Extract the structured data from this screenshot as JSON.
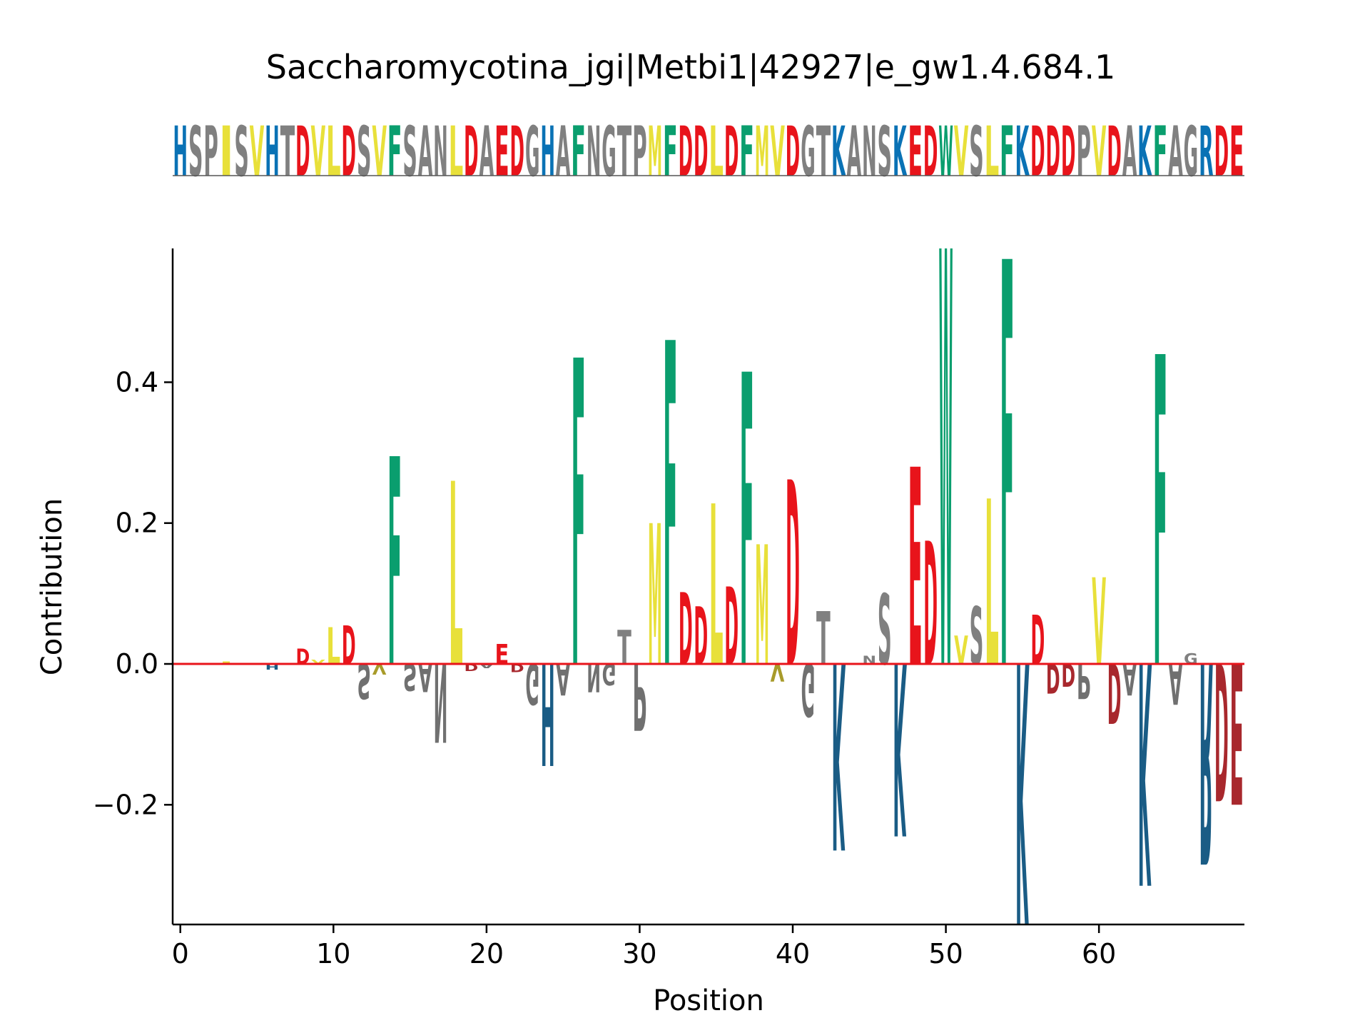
{
  "chart_data": {
    "type": "sequence-logo",
    "title": "Saccharomycotina_jgi|Metbi1|42927|e_gw1.4.684.1",
    "xlabel": "Position",
    "ylabel": "Contribution",
    "xlim": [
      -0.5,
      69.5
    ],
    "ylim": [
      -0.37,
      0.59
    ],
    "xticks": [
      0,
      10,
      20,
      30,
      40,
      50,
      60
    ],
    "yticks": [
      {
        "value": -0.2,
        "label": "−0.2"
      },
      {
        "value": 0.0,
        "label": "0.0"
      },
      {
        "value": 0.2,
        "label": "0.2"
      },
      {
        "value": 0.4,
        "label": "0.4"
      }
    ],
    "grid": false,
    "legend": "none",
    "baseline_color": "#e8141b",
    "sequence": "HSPISVHTDVLDSVFSANLDAEDGHAFNGTPMFDDLDFMVDGTKANSKEDWVSLFKDDDPVDAKFAGRDE",
    "colors": {
      "acidic": "#e8141b",
      "aromatic": "#0a9e6e",
      "hydrophobic": "#e8e03a",
      "basic": "#0a72b5",
      "other": "#808080"
    },
    "contributions": [
      {
        "pos": 3,
        "res": "I",
        "value": 0.003
      },
      {
        "pos": 6,
        "res": "H",
        "value": -0.008
      },
      {
        "pos": 8,
        "res": "D",
        "value": 0.022
      },
      {
        "pos": 9,
        "res": "V",
        "value": 0.006
      },
      {
        "pos": 10,
        "res": "L",
        "value": 0.052
      },
      {
        "pos": 11,
        "res": "D",
        "value": 0.055
      },
      {
        "pos": 12,
        "res": "S",
        "value": -0.05
      },
      {
        "pos": 13,
        "res": "V",
        "value": -0.015
      },
      {
        "pos": 14,
        "res": "F",
        "value": 0.295
      },
      {
        "pos": 15,
        "res": "S",
        "value": -0.038
      },
      {
        "pos": 16,
        "res": "A",
        "value": -0.04
      },
      {
        "pos": 17,
        "res": "N",
        "value": -0.112
      },
      {
        "pos": 18,
        "res": "L",
        "value": 0.26
      },
      {
        "pos": 19,
        "res": "D",
        "value": -0.01
      },
      {
        "pos": 20,
        "res": "A",
        "value": -0.006
      },
      {
        "pos": 21,
        "res": "E",
        "value": 0.028
      },
      {
        "pos": 22,
        "res": "D",
        "value": -0.012
      },
      {
        "pos": 23,
        "res": "G",
        "value": -0.058
      },
      {
        "pos": 24,
        "res": "H",
        "value": -0.145
      },
      {
        "pos": 25,
        "res": "A",
        "value": -0.045
      },
      {
        "pos": 26,
        "res": "F",
        "value": 0.435
      },
      {
        "pos": 27,
        "res": "N",
        "value": -0.04
      },
      {
        "pos": 28,
        "res": "G",
        "value": -0.03
      },
      {
        "pos": 29,
        "res": "T",
        "value": 0.048
      },
      {
        "pos": 30,
        "res": "P",
        "value": -0.095
      },
      {
        "pos": 31,
        "res": "M",
        "value": 0.2
      },
      {
        "pos": 32,
        "res": "F",
        "value": 0.46
      },
      {
        "pos": 33,
        "res": "D",
        "value": 0.102
      },
      {
        "pos": 34,
        "res": "D",
        "value": 0.082
      },
      {
        "pos": 35,
        "res": "L",
        "value": 0.228
      },
      {
        "pos": 36,
        "res": "D",
        "value": 0.11
      },
      {
        "pos": 37,
        "res": "F",
        "value": 0.415
      },
      {
        "pos": 38,
        "res": "M",
        "value": 0.17
      },
      {
        "pos": 39,
        "res": "V",
        "value": -0.025
      },
      {
        "pos": 40,
        "res": "D",
        "value": 0.262
      },
      {
        "pos": 41,
        "res": "G",
        "value": -0.075
      },
      {
        "pos": 42,
        "res": "T",
        "value": 0.075
      },
      {
        "pos": 43,
        "res": "K",
        "value": -0.265
      },
      {
        "pos": 45,
        "res": "N",
        "value": 0.012
      },
      {
        "pos": 46,
        "res": "S",
        "value": 0.1
      },
      {
        "pos": 47,
        "res": "K",
        "value": -0.245
      },
      {
        "pos": 48,
        "res": "E",
        "value": 0.28
      },
      {
        "pos": 49,
        "res": "D",
        "value": 0.175
      },
      {
        "pos": 50,
        "res": "W",
        "value": 0.59
      },
      {
        "pos": 51,
        "res": "V",
        "value": 0.04
      },
      {
        "pos": 52,
        "res": "S",
        "value": 0.082
      },
      {
        "pos": 53,
        "res": "L",
        "value": 0.235
      },
      {
        "pos": 54,
        "res": "F",
        "value": 0.575
      },
      {
        "pos": 55,
        "res": "K",
        "value": -0.37
      },
      {
        "pos": 56,
        "res": "D",
        "value": 0.07
      },
      {
        "pos": 57,
        "res": "D",
        "value": -0.042
      },
      {
        "pos": 58,
        "res": "D",
        "value": -0.032
      },
      {
        "pos": 59,
        "res": "P",
        "value": -0.05
      },
      {
        "pos": 60,
        "res": "V",
        "value": 0.123
      },
      {
        "pos": 61,
        "res": "D",
        "value": -0.085
      },
      {
        "pos": 62,
        "res": "A",
        "value": -0.045
      },
      {
        "pos": 63,
        "res": "K",
        "value": -0.315
      },
      {
        "pos": 64,
        "res": "F",
        "value": 0.44
      },
      {
        "pos": 65,
        "res": "A",
        "value": -0.058
      },
      {
        "pos": 66,
        "res": "G",
        "value": 0.015
      },
      {
        "pos": 67,
        "res": "R",
        "value": -0.285
      },
      {
        "pos": 68,
        "res": "D",
        "value": -0.195
      },
      {
        "pos": 69,
        "res": "E",
        "value": -0.2
      }
    ]
  }
}
